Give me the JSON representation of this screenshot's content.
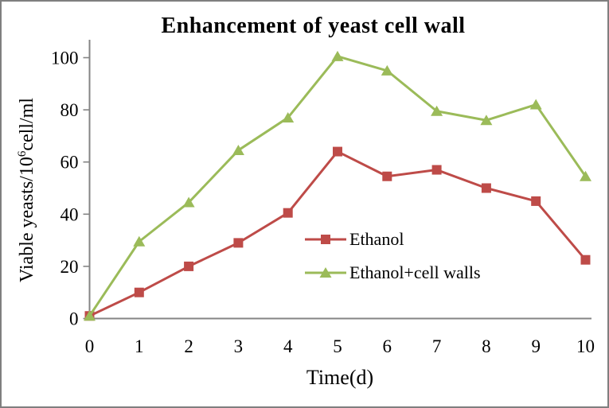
{
  "chart_data": {
    "type": "line",
    "title": "Enhancement of yeast cell wall",
    "xlabel": "Time(d)",
    "ylabel": "Viable yeasts/10⁶cell/ml",
    "ylabel_parts": {
      "prefix": "Viable yeasts/10",
      "superscript": "6",
      "suffix": "cell/ml"
    },
    "x": [
      0,
      1,
      2,
      3,
      4,
      5,
      6,
      7,
      8,
      9,
      10
    ],
    "x_ticks": [
      0,
      1,
      2,
      3,
      4,
      5,
      6,
      7,
      8,
      9,
      10
    ],
    "y_ticks": [
      0,
      20,
      40,
      60,
      80,
      100
    ],
    "xlim": [
      0,
      10
    ],
    "ylim": [
      0,
      110
    ],
    "grid": false,
    "legend_position": "inside-center-right",
    "series": [
      {
        "name": "Ethanol",
        "color": "#be4b48",
        "marker": "square",
        "values": [
          1,
          10,
          20,
          29,
          40.5,
          64,
          54.5,
          57,
          50,
          45,
          22.5
        ]
      },
      {
        "name": "Ethanol+cell walls",
        "color": "#9bbb59",
        "marker": "triangle",
        "values": [
          1,
          29.5,
          44.5,
          64.5,
          77,
          100.5,
          95,
          79.5,
          76,
          82,
          54.5
        ]
      }
    ]
  },
  "colors": {
    "axis": "#848484",
    "text": "#000000",
    "frame_border": "#7f7f7f",
    "background": "#ffffff"
  }
}
